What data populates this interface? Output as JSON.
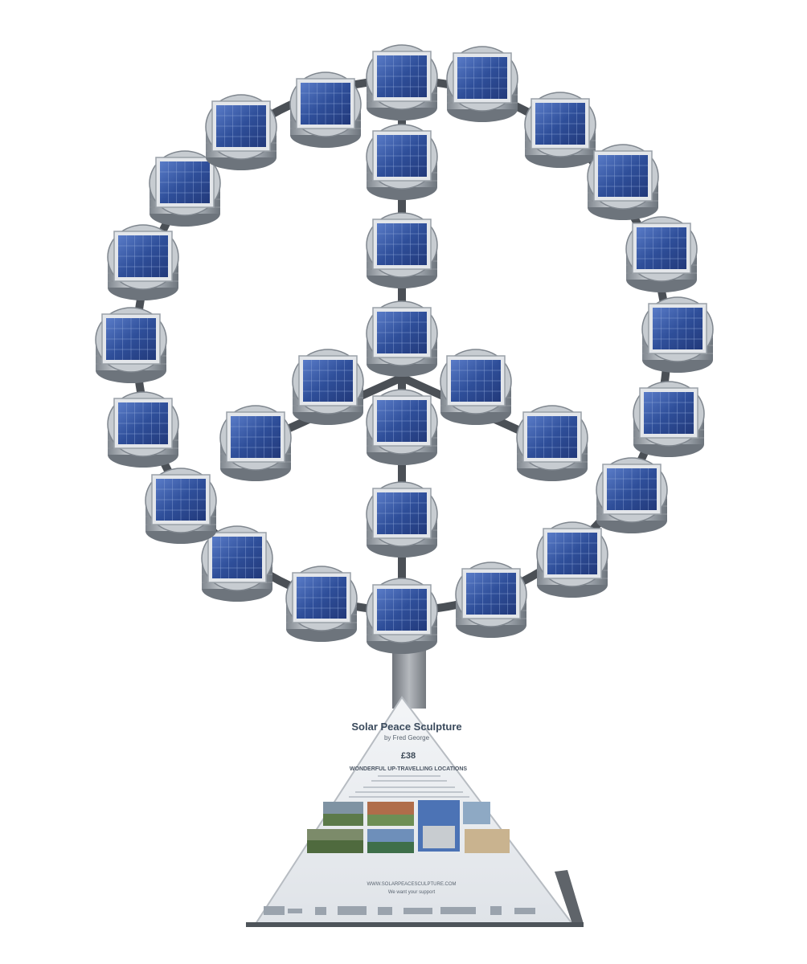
{
  "scene": {
    "subject": "solar-peace-sculpture",
    "colors": {
      "panel": "#2f4f9a",
      "panel_light": "#5a7cc8",
      "frame": "#d9dde2",
      "drum": "#b9bfc6",
      "drum_dark": "#7f868e",
      "pole": "#8a8f95",
      "plaque": "#eef1f4"
    }
  },
  "plaque": {
    "title": "Solar Peace Sculpture",
    "byline": "by Fred George",
    "price": "£38",
    "heading": "WONDERFUL UP-TRAVELLING LOCATIONS",
    "website": "WWW.SOLARPEACESCULPTURE.COM",
    "tagline": "We want your support"
  }
}
